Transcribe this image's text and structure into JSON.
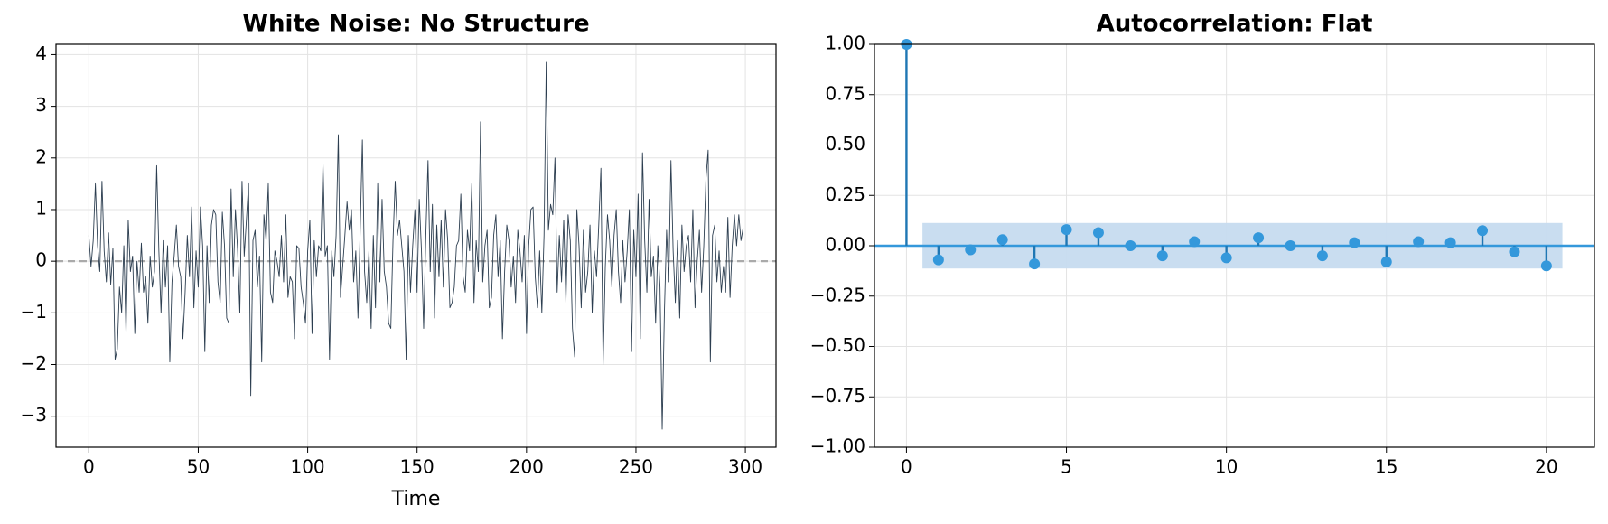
{
  "chart_data": [
    {
      "type": "line",
      "title": "White Noise: No Structure",
      "xlabel": "Time",
      "x": [
        0,
        1,
        2,
        3,
        4,
        5,
        6,
        7,
        8,
        9,
        10,
        11,
        12,
        13,
        14,
        15,
        16,
        17,
        18,
        19,
        20,
        21,
        22,
        23,
        24,
        25,
        26,
        27,
        28,
        29,
        30,
        31,
        32,
        33,
        34,
        35,
        36,
        37,
        38,
        39,
        40,
        41,
        42,
        43,
        44,
        45,
        46,
        47,
        48,
        49,
        50,
        51,
        52,
        53,
        54,
        55,
        56,
        57,
        58,
        59,
        60,
        61,
        62,
        63,
        64,
        65,
        66,
        67,
        68,
        69,
        70,
        71,
        72,
        73,
        74,
        75,
        76,
        77,
        78,
        79,
        80,
        81,
        82,
        83,
        84,
        85,
        86,
        87,
        88,
        89,
        90,
        91,
        92,
        93,
        94,
        95,
        96,
        97,
        98,
        99,
        100,
        101,
        102,
        103,
        104,
        105,
        106,
        107,
        108,
        109,
        110,
        111,
        112,
        113,
        114,
        115,
        116,
        117,
        118,
        119,
        120,
        121,
        122,
        123,
        124,
        125,
        126,
        127,
        128,
        129,
        130,
        131,
        132,
        133,
        134,
        135,
        136,
        137,
        138,
        139,
        140,
        141,
        142,
        143,
        144,
        145,
        146,
        147,
        148,
        149,
        150,
        151,
        152,
        153,
        154,
        155,
        156,
        157,
        158,
        159,
        160,
        161,
        162,
        163,
        164,
        165,
        166,
        167,
        168,
        169,
        170,
        171,
        172,
        173,
        174,
        175,
        176,
        177,
        178,
        179,
        180,
        181,
        182,
        183,
        184,
        185,
        186,
        187,
        188,
        189,
        190,
        191,
        192,
        193,
        194,
        195,
        196,
        197,
        198,
        199,
        200,
        201,
        202,
        203,
        204,
        205,
        206,
        207,
        208,
        209,
        210,
        211,
        212,
        213,
        214,
        215,
        216,
        217,
        218,
        219,
        220,
        221,
        222,
        223,
        224,
        225,
        226,
        227,
        228,
        229,
        230,
        231,
        232,
        233,
        234,
        235,
        236,
        237,
        238,
        239,
        240,
        241,
        242,
        243,
        244,
        245,
        246,
        247,
        248,
        249,
        250,
        251,
        252,
        253,
        254,
        255,
        256,
        257,
        258,
        259,
        260,
        261,
        262,
        263,
        264,
        265,
        266,
        267,
        268,
        269,
        270,
        271,
        272,
        273,
        274,
        275,
        276,
        277,
        278,
        279,
        280,
        281,
        282,
        283,
        284,
        285,
        286,
        287,
        288,
        289,
        290,
        291,
        292,
        293,
        294,
        295,
        296,
        297,
        298,
        299
      ],
      "series": [
        {
          "color": "#2c3e50",
          "values": [
            0.5,
            -0.1,
            0.4,
            1.5,
            0.3,
            -0.2,
            1.55,
            0.2,
            -0.4,
            0.55,
            -0.45,
            0.25,
            -1.9,
            -1.7,
            -0.5,
            -1.0,
            0.3,
            -1.4,
            0.8,
            -0.2,
            0.1,
            -1.4,
            0.0,
            -0.6,
            0.35,
            -0.6,
            -0.3,
            -1.2,
            0.1,
            -0.5,
            -0.2,
            1.85,
            0.2,
            -1.0,
            0.4,
            -0.5,
            0.3,
            -1.95,
            -0.4,
            0.1,
            0.7,
            -0.1,
            -0.3,
            -1.5,
            -0.6,
            0.5,
            -0.3,
            1.05,
            -0.9,
            0.2,
            -0.5,
            1.05,
            0.3,
            -1.75,
            0.3,
            -0.8,
            0.7,
            1.0,
            0.9,
            -0.4,
            -0.8,
            0.95,
            0.3,
            -1.1,
            -1.2,
            1.4,
            -0.3,
            1.0,
            0.2,
            -1.0,
            1.55,
            0.1,
            0.8,
            1.5,
            -2.6,
            0.4,
            0.6,
            -0.5,
            0.1,
            -1.95,
            0.9,
            0.4,
            1.5,
            -0.6,
            -0.8,
            0.2,
            0.0,
            -0.3,
            0.5,
            -0.4,
            0.9,
            -0.7,
            -0.3,
            -0.4,
            -1.5,
            0.3,
            0.25,
            -0.5,
            -0.8,
            -1.2,
            0.2,
            0.8,
            -1.4,
            0.4,
            -0.3,
            0.3,
            0.2,
            1.9,
            0.1,
            0.3,
            -1.9,
            0.2,
            -0.3,
            0.5,
            2.45,
            -0.7,
            -0.1,
            0.5,
            1.15,
            0.6,
            1.0,
            -0.4,
            0.2,
            -1.1,
            0.6,
            2.35,
            -0.2,
            -0.8,
            0.2,
            -1.3,
            0.5,
            -0.9,
            1.5,
            -0.4,
            1.2,
            -0.2,
            -0.5,
            -1.2,
            -1.3,
            0.4,
            1.55,
            0.5,
            0.8,
            0.3,
            -0.2,
            -1.9,
            0.5,
            -0.6,
            0.3,
            1.0,
            -0.6,
            1.2,
            0.2,
            -1.3,
            0.5,
            1.95,
            -0.2,
            1.1,
            -1.1,
            0.7,
            -0.3,
            0.8,
            -0.5,
            1.0,
            0.4,
            -0.9,
            -0.8,
            -0.5,
            0.3,
            0.4,
            1.3,
            -0.3,
            -0.6,
            0.6,
            0.2,
            1.5,
            -0.8,
            0.4,
            -0.2,
            2.7,
            -0.4,
            0.3,
            0.6,
            -0.9,
            -0.7,
            0.5,
            0.9,
            -0.3,
            0.4,
            -1.5,
            -0.2,
            0.7,
            0.4,
            -0.5,
            0.1,
            -0.8,
            0.6,
            0.2,
            -0.4,
            0.5,
            -1.4,
            0.3,
            1.0,
            1.05,
            -0.3,
            -0.9,
            0.2,
            -1.0,
            0.5,
            3.85,
            0.6,
            1.1,
            0.9,
            2.0,
            -0.6,
            0.5,
            -0.4,
            0.8,
            -0.8,
            0.9,
            0.4,
            -1.3,
            -1.85,
            1.0,
            0.3,
            -0.9,
            0.6,
            -0.6,
            -0.2,
            0.7,
            -1.0,
            0.2,
            -0.3,
            0.7,
            1.8,
            -2.0,
            -0.1,
            0.9,
            0.4,
            -0.5,
            0.5,
            1.0,
            -0.2,
            -0.8,
            0.4,
            -0.4,
            0.2,
            1.0,
            -1.75,
            0.6,
            -0.3,
            1.3,
            -1.5,
            2.1,
            0.4,
            -0.6,
            1.2,
            -0.3,
            0.1,
            -1.2,
            0.3,
            -0.5,
            -3.25,
            -1.0,
            0.6,
            -0.4,
            1.95,
            0.2,
            -0.8,
            0.4,
            -1.1,
            0.7,
            -0.2,
            0.3,
            0.5,
            -0.4,
            1.0,
            -0.9,
            0.0,
            0.6,
            -0.6,
            0.3,
            1.6,
            2.15,
            -1.95,
            0.5,
            0.7,
            -0.4,
            0.2,
            -0.6,
            -0.1,
            -0.6,
            0.85,
            -0.7,
            0.3,
            0.9,
            0.3,
            0.9,
            0.4,
            0.65
          ]
        }
      ],
      "xlim": [
        -15,
        314
      ],
      "ylim": [
        -3.6,
        4.2
      ],
      "xticks": [
        0,
        50,
        100,
        150,
        200,
        250,
        300
      ],
      "yticks": [
        {
          "value": -3,
          "label": "−3"
        },
        {
          "value": -2,
          "label": "−2"
        },
        {
          "value": -1,
          "label": "−1"
        },
        0,
        1,
        2,
        3,
        4
      ],
      "grid": true,
      "hline": 0,
      "hline_color": "#aaaaaa"
    },
    {
      "type": "stem",
      "title": "Autocorrelation: Flat",
      "x": [
        0,
        1,
        2,
        3,
        4,
        5,
        6,
        7,
        8,
        9,
        10,
        11,
        12,
        13,
        14,
        15,
        16,
        17,
        18,
        19,
        20
      ],
      "values": [
        1.0,
        -0.07,
        -0.02,
        0.03,
        -0.09,
        0.08,
        0.065,
        0.0,
        -0.05,
        0.02,
        -0.06,
        0.04,
        0.0,
        -0.05,
        0.015,
        -0.08,
        0.02,
        0.015,
        0.075,
        -0.03,
        -0.1
      ],
      "color": "#3498db",
      "stem_color": "#1f77b4",
      "confint": 0.113,
      "confint_x": [
        0.5,
        20.5
      ],
      "band_color": "#c6dbef",
      "xlim": [
        -1,
        21.5
      ],
      "ylim": [
        -1,
        1
      ],
      "xticks": [
        0,
        5,
        10,
        15,
        20
      ],
      "yticks": [
        {
          "value": -1,
          "label": "−1.00"
        },
        {
          "value": -0.75,
          "label": "−0.75"
        },
        {
          "value": -0.5,
          "label": "−0.50"
        },
        {
          "value": -0.25,
          "label": "−0.25"
        },
        {
          "value": 0,
          "label": "0.00"
        },
        {
          "value": 0.25,
          "label": "0.25"
        },
        {
          "value": 0.5,
          "label": "0.50"
        },
        {
          "value": 0.75,
          "label": "0.75"
        },
        {
          "value": 1,
          "label": "1.00"
        }
      ],
      "grid": true,
      "hline": 0
    }
  ]
}
